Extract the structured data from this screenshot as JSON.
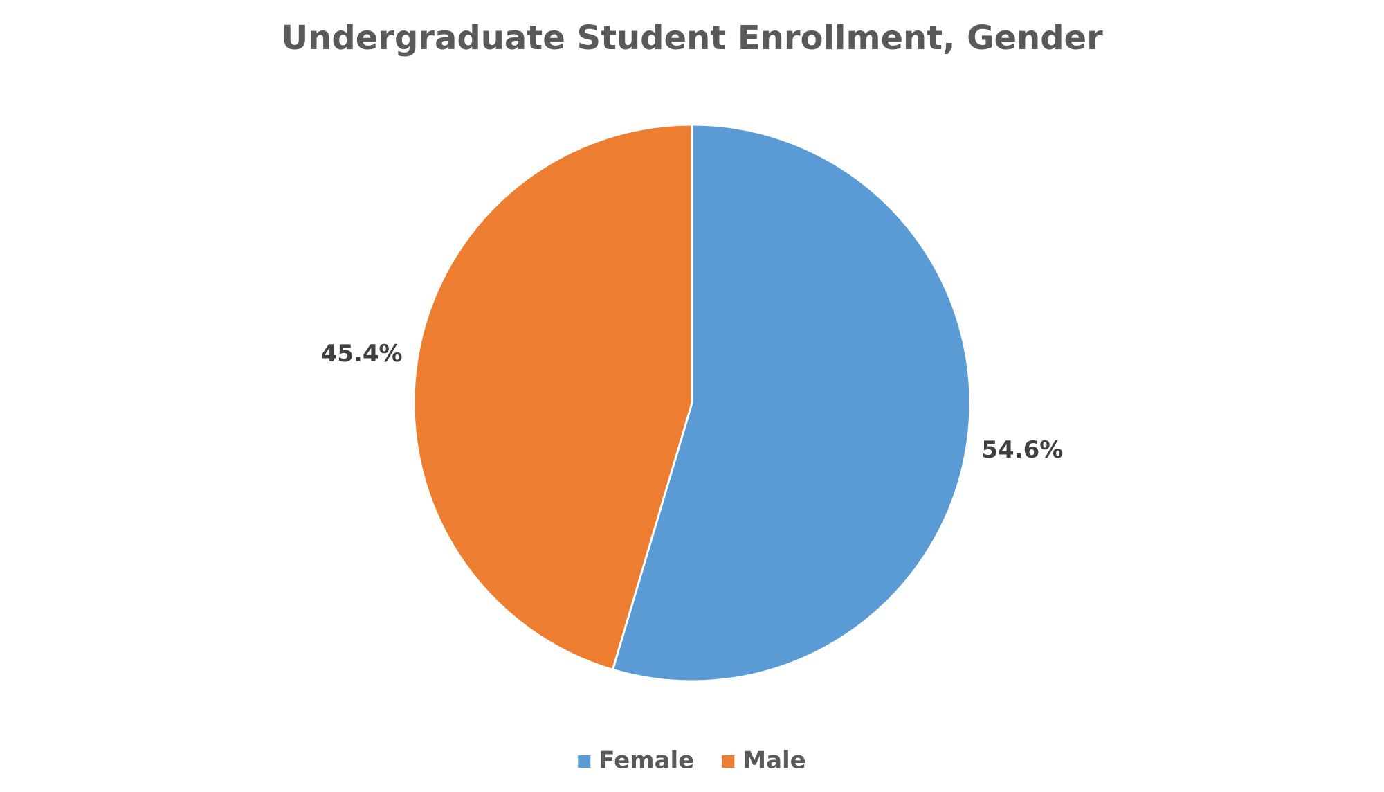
{
  "chart_data": {
    "type": "pie",
    "title": "Undergraduate Student Enrollment, Gender",
    "categories": [
      "Female",
      "Male"
    ],
    "values": [
      54.6,
      45.4
    ],
    "value_labels": [
      "54.6%",
      "45.4%"
    ],
    "colors": [
      "#5b9bd5",
      "#ed7d31"
    ],
    "legend": "bottom"
  }
}
